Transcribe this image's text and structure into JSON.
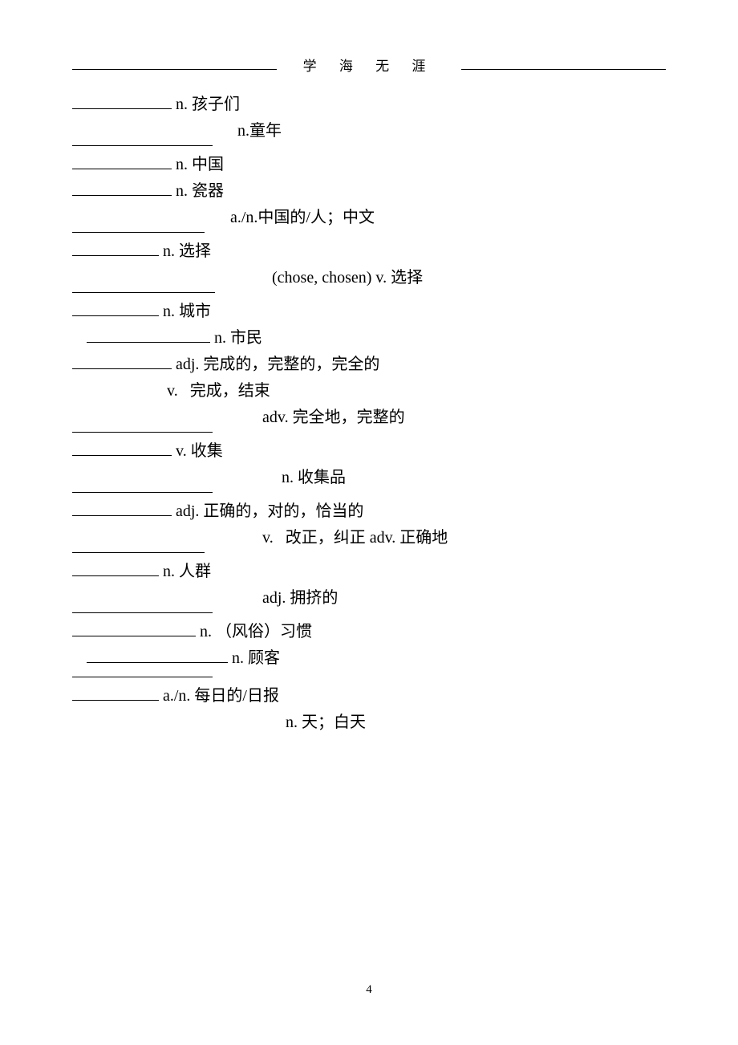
{
  "header": {
    "title": "学 海 无 涯"
  },
  "entries": [
    {
      "blank_width": 124,
      "text": " n. 孩子们",
      "second_text": " n.童年",
      "second_indent": 201,
      "second_blank_width": 175
    },
    {
      "blank_width": 124,
      "text": " n. 中国"
    },
    {
      "blank_width": 124,
      "text": " n. 瓷器",
      "second_text": " a./n.中国的/人；中文",
      "second_indent": 192,
      "second_blank_width": 165
    },
    {
      "blank_width": 108,
      "text": " n. 选择",
      "second_text": " (chose, chosen) v. 选择",
      "second_indent": 244,
      "second_blank_width": 178
    },
    {
      "blank_width": 108,
      "text": " n. 城市"
    },
    {
      "blank_width": 154,
      "text": " n. 市民",
      "indent": 18
    },
    {
      "blank_width": 124,
      "text": " adj. 完成的，完整的，完全的",
      "third_text": "v.   完成，结束",
      "third_indent": 118,
      "second_text": " adv. 完全地，完整的",
      "second_indent": 232,
      "second_blank_width": 175
    },
    {
      "blank_width": 124,
      "text": " v. 收集",
      "second_text": " n. 收集品",
      "second_indent": 256,
      "second_blank_width": 175
    },
    {
      "blank_width": 124,
      "text": " adj. 正确的，对的，恰当的",
      "second_text": " v.   改正，纠正 adv. 正确地",
      "second_indent": 232,
      "second_blank_width": 165
    },
    {
      "blank_width": 108,
      "text": " n. 人群",
      "second_text": " adj. 拥挤的",
      "second_indent": 232,
      "second_blank_width": 175
    },
    {
      "blank_width": 154,
      "text": " n. （风俗）习惯"
    },
    {
      "blank_width": 176,
      "text": " n. 顾客",
      "indent": 18,
      "second_text": "",
      "second_indent": 0,
      "second_blank_width": 175
    },
    {
      "blank_width": 108,
      "text": " a./n. 每日的/日报",
      "second_text": " n. 天；白天",
      "second_indent": 261,
      "second_blank_width": 0,
      "no_blank": true
    }
  ],
  "page_number": "4",
  "styles": {
    "text_color": "#000000",
    "bg_color": "#ffffff",
    "line_color": "#000000",
    "body_fontsize": 20,
    "header_fontsize": 17,
    "pagenum_fontsize": 15
  }
}
